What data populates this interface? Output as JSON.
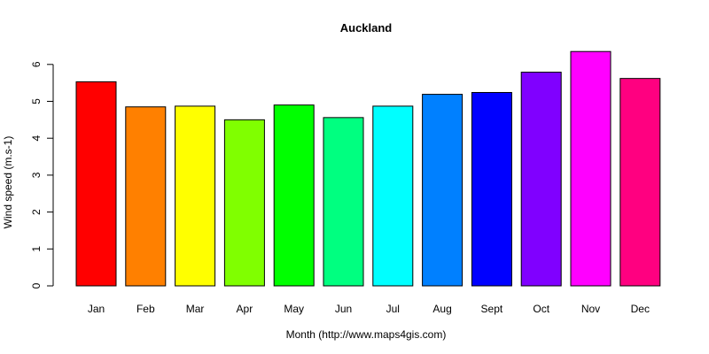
{
  "chart_data": {
    "type": "bar",
    "title": "Auckland",
    "xlabel": "Month (http://www.maps4gis.com)",
    "ylabel": "Wind speed (m.s-1)",
    "ylim": [
      0,
      6
    ],
    "yticks": [
      0,
      1,
      2,
      3,
      4,
      5,
      6
    ],
    "grid": false,
    "legend": "none",
    "categories": [
      "Jan",
      "Feb",
      "Mar",
      "Apr",
      "May",
      "Jun",
      "Jul",
      "Aug",
      "Sept",
      "Oct",
      "Nov",
      "Dec"
    ],
    "values": [
      5.53,
      4.85,
      4.87,
      4.5,
      4.9,
      4.56,
      4.87,
      5.19,
      5.24,
      5.79,
      6.35,
      5.62
    ],
    "colors": [
      "#FF0000",
      "#FF8000",
      "#FFFF00",
      "#80FF00",
      "#00FF00",
      "#00FF80",
      "#00FFFF",
      "#0080FF",
      "#0000FF",
      "#8000FF",
      "#FF00FF",
      "#FF0080"
    ]
  }
}
